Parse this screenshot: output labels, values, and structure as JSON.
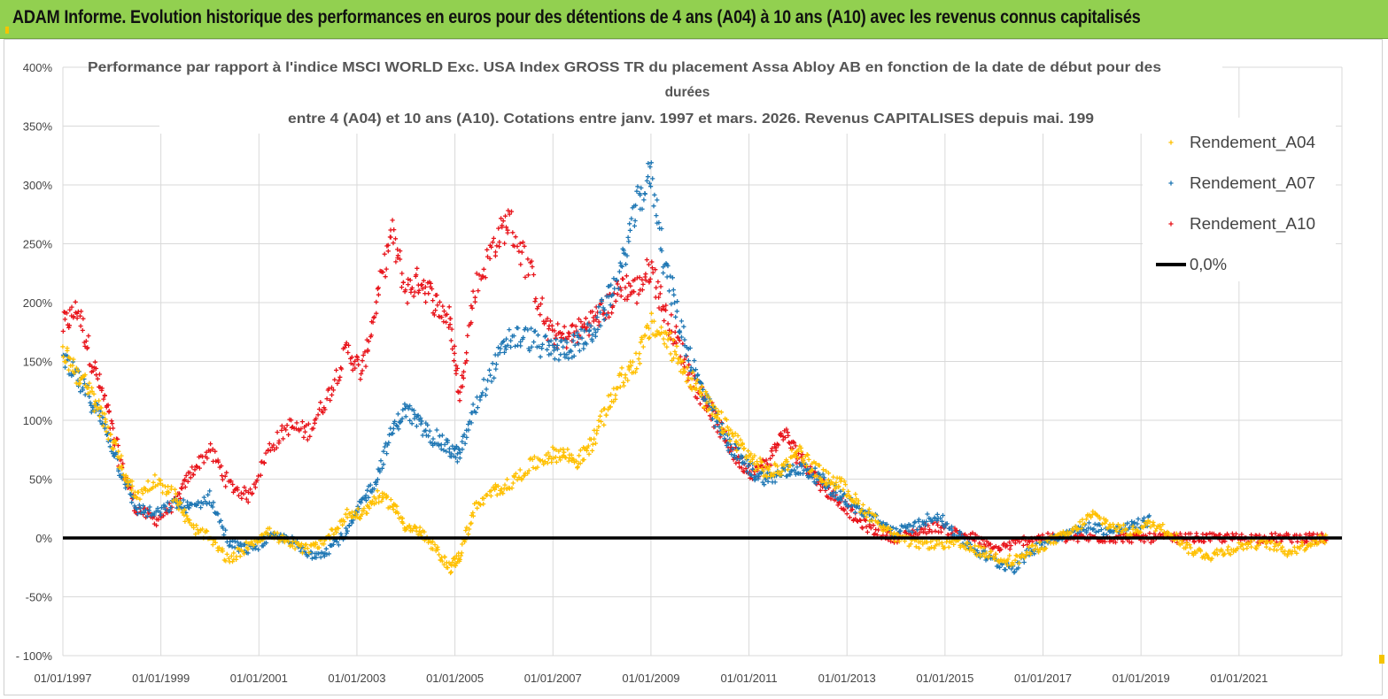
{
  "header": {
    "title": "ADAM Informe. Evolution historique des performances en euros pour des détentions de 4 ans (A04) à 10 ans (A10) avec les revenus connus capitalisés"
  },
  "chart_data": {
    "type": "scatter",
    "title_lines": [
      "Performance par rapport à l'indice MSCI WORLD Exc. USA Index GROSS TR  du placement Assa Abloy AB en fonction de la date de début pour des",
      "durées",
      "entre 4 (A04) et 10 ans (A10). Cotations entre janv. 1997 et mars. 2026. Revenus CAPITALISES depuis mai. 199"
    ],
    "ylim": [
      -100,
      400
    ],
    "y_ticks": [
      -100,
      -50,
      0,
      50,
      100,
      150,
      200,
      250,
      300,
      350,
      400
    ],
    "y_tick_labels": [
      "- 100%",
      "-50%",
      "0%",
      "50%",
      "100%",
      "150%",
      "200%",
      "250%",
      "300%",
      "350%",
      "400%"
    ],
    "xlim": [
      1997.0,
      2023.1
    ],
    "x_ticks": [
      1997,
      1999,
      2001,
      2003,
      2005,
      2007,
      2009,
      2011,
      2013,
      2015,
      2017,
      2019,
      2021
    ],
    "x_tick_labels": [
      "01/01/1997",
      "01/01/1999",
      "01/01/2001",
      "01/01/2003",
      "01/01/2005",
      "01/01/2007",
      "01/01/2009",
      "01/01/2011",
      "01/01/2013",
      "01/01/2015",
      "01/01/2017",
      "01/01/2019",
      "01/01/2021"
    ],
    "series": [
      {
        "name": "Rendement_A04",
        "color": "#ffc000",
        "x": [
          1997.0,
          1997.3,
          1997.6,
          1997.9,
          1998.2,
          1998.5,
          1998.9,
          1999.3,
          1999.6,
          2000.0,
          2000.4,
          2000.8,
          2001.2,
          2001.6,
          2002.0,
          2002.4,
          2002.8,
          2003.1,
          2003.4,
          2003.7,
          2004.0,
          2004.3,
          2004.6,
          2004.9,
          2005.1,
          2005.4,
          2005.8,
          2006.1,
          2006.5,
          2006.9,
          2007.2,
          2007.5,
          2007.8,
          2008.1,
          2008.4,
          2008.7,
          2009.0,
          2009.3,
          2009.6,
          2009.9,
          2010.2,
          2010.5,
          2010.8,
          2011.1,
          2011.4,
          2011.7,
          2012.0,
          2012.3,
          2012.6,
          2012.9,
          2013.2,
          2013.6,
          2014.0,
          2014.4,
          2014.8,
          2015.2,
          2015.6,
          2016.0,
          2016.4,
          2016.8,
          2017.2,
          2017.6,
          2018.0,
          2018.4,
          2018.8,
          2019.2,
          2019.6,
          2020.0,
          2020.4,
          2020.8,
          2021.2,
          2021.6,
          2022.0,
          2022.4,
          2022.8
        ],
        "y": [
          160,
          140,
          120,
          95,
          60,
          35,
          50,
          35,
          10,
          0,
          -20,
          -5,
          5,
          -5,
          -10,
          0,
          20,
          20,
          35,
          30,
          10,
          5,
          -10,
          -25,
          -15,
          25,
          40,
          45,
          60,
          70,
          72,
          65,
          80,
          110,
          135,
          150,
          180,
          170,
          150,
          130,
          110,
          95,
          80,
          65,
          55,
          60,
          75,
          60,
          50,
          45,
          30,
          15,
          0,
          -5,
          -5,
          -5,
          -10,
          -15,
          -20,
          -10,
          -2,
          5,
          20,
          10,
          5,
          12,
          5,
          -10,
          -15,
          -10,
          -5,
          -5,
          -12,
          -5,
          0
        ]
      },
      {
        "name": "Rendement_A07",
        "color": "#1f77b4",
        "x": [
          1997.0,
          1997.3,
          1997.6,
          1997.9,
          1998.2,
          1998.5,
          1998.9,
          1999.3,
          1999.6,
          2000.0,
          2000.4,
          2000.8,
          2001.2,
          2001.6,
          2002.0,
          2002.4,
          2002.8,
          2003.1,
          2003.4,
          2003.7,
          2004.0,
          2004.3,
          2004.6,
          2004.9,
          2005.1,
          2005.4,
          2005.8,
          2006.1,
          2006.5,
          2006.9,
          2007.2,
          2007.5,
          2007.8,
          2008.1,
          2008.4,
          2008.7,
          2009.0,
          2009.3,
          2009.6,
          2009.9,
          2010.2,
          2010.5,
          2010.8,
          2011.1,
          2011.4,
          2011.7,
          2012.0,
          2012.3,
          2012.6,
          2012.9,
          2013.2,
          2013.6,
          2014.0,
          2014.4,
          2014.8,
          2015.2,
          2015.6,
          2016.0,
          2016.4,
          2016.8,
          2017.2,
          2017.6,
          2018.0,
          2018.4,
          2018.8,
          2019.2
        ],
        "y": [
          150,
          135,
          115,
          90,
          55,
          25,
          20,
          30,
          25,
          35,
          -5,
          -10,
          0,
          0,
          -15,
          -10,
          5,
          30,
          50,
          90,
          110,
          95,
          85,
          75,
          70,
          110,
          145,
          170,
          170,
          160,
          160,
          165,
          175,
          200,
          230,
          280,
          310,
          230,
          180,
          140,
          110,
          85,
          70,
          55,
          50,
          55,
          60,
          55,
          45,
          35,
          25,
          15,
          5,
          10,
          20,
          5,
          -10,
          -20,
          -25,
          -10,
          0,
          5,
          10,
          5,
          10,
          15
        ]
      },
      {
        "name": "Rendement_A10",
        "color": "#e8141b",
        "x": [
          1997.0,
          1997.3,
          1997.6,
          1997.9,
          1998.2,
          1998.5,
          1998.9,
          1999.3,
          1999.6,
          2000.0,
          2000.4,
          2000.8,
          2001.2,
          2001.6,
          2002.0,
          2002.4,
          2002.8,
          2003.1,
          2003.4,
          2003.7,
          2004.0,
          2004.3,
          2004.6,
          2004.9,
          2005.1,
          2005.4,
          2005.8,
          2006.1,
          2006.5,
          2006.9,
          2007.2,
          2007.5,
          2007.8,
          2008.1,
          2008.4,
          2008.7,
          2009.0,
          2009.3,
          2009.6,
          2009.9,
          2010.2,
          2010.5,
          2010.8,
          2011.1,
          2011.4,
          2011.7,
          2012.0,
          2012.3,
          2012.6,
          2012.9,
          2013.2,
          2013.6,
          2014.0,
          2014.4,
          2014.8,
          2015.2,
          2015.6,
          2016.0,
          2016.4,
          2016.8,
          2017.2,
          2017.6,
          2018.0,
          2018.4,
          2018.8,
          2019.2,
          2019.6,
          2020.0,
          2020.4,
          2020.8,
          2021.2,
          2021.6,
          2022.0,
          2022.4,
          2022.8
        ],
        "y": [
          180,
          195,
          150,
          110,
          60,
          25,
          15,
          30,
          55,
          75,
          45,
          35,
          75,
          95,
          90,
          120,
          160,
          140,
          200,
          260,
          210,
          220,
          200,
          185,
          120,
          210,
          250,
          270,
          230,
          175,
          170,
          175,
          185,
          195,
          215,
          210,
          230,
          190,
          160,
          130,
          110,
          85,
          65,
          55,
          65,
          90,
          70,
          55,
          40,
          30,
          15,
          5,
          0,
          5,
          10,
          5,
          0,
          -10,
          -5,
          0,
          0,
          0,
          0,
          0,
          0,
          0,
          0,
          0,
          0,
          0,
          0,
          0,
          0,
          0,
          0
        ]
      },
      {
        "name": "0,0%",
        "color": "#000000",
        "x": [
          1997.0,
          2023.1
        ],
        "y": [
          0,
          0
        ]
      }
    ],
    "legend_position": "top-right"
  }
}
